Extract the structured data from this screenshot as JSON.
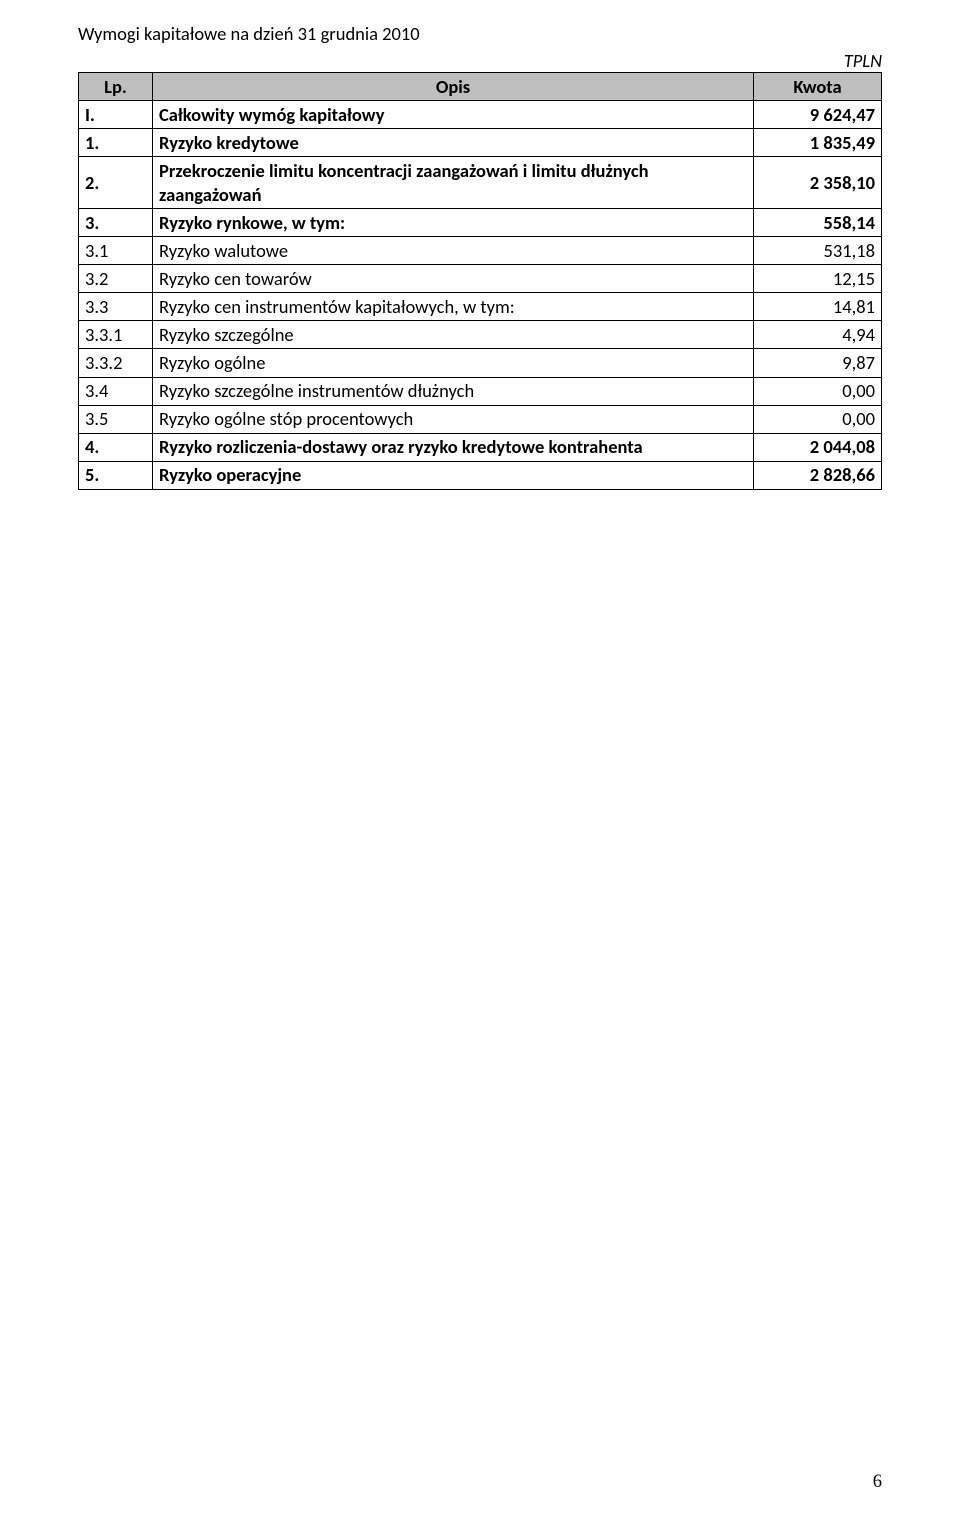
{
  "title": "Wymogi kapitałowe na dzień 31 grudnia 2010",
  "currency_label": "TPLN",
  "table": {
    "headers": {
      "lp": "Lp.",
      "opis": "Opis",
      "kwota": "Kwota"
    },
    "header_bg": "#bfbfbf",
    "border_color": "#000000",
    "rows": [
      {
        "lp": "I.",
        "opis": "Całkowity wymóg kapitałowy",
        "kwota": "9 624,47",
        "bold": true
      },
      {
        "lp": "1.",
        "opis": "Ryzyko kredytowe",
        "kwota": "1 835,49",
        "bold": true
      },
      {
        "lp": "2.",
        "opis": "Przekroczenie limitu koncentracji zaangażowań i limitu dłużnych zaangażowań",
        "kwota": "2 358,10",
        "bold": true
      },
      {
        "lp": "3.",
        "opis": "Ryzyko rynkowe, w tym:",
        "kwota": "558,14",
        "bold": true
      },
      {
        "lp": "3.1",
        "opis": "Ryzyko walutowe",
        "kwota": "531,18",
        "bold": false
      },
      {
        "lp": "3.2",
        "opis": "Ryzyko cen towarów",
        "kwota": "12,15",
        "bold": false
      },
      {
        "lp": "3.3",
        "opis": "Ryzyko cen instrumentów kapitałowych, w tym:",
        "kwota": "14,81",
        "bold": false
      },
      {
        "lp": "3.3.1",
        "opis": "Ryzyko szczególne",
        "kwota": "4,94",
        "bold": false
      },
      {
        "lp": "3.3.2",
        "opis": "Ryzyko ogólne",
        "kwota": "9,87",
        "bold": false
      },
      {
        "lp": "3.4",
        "opis": "Ryzyko szczególne instrumentów dłużnych",
        "kwota": "0,00",
        "bold": false
      },
      {
        "lp": "3.5",
        "opis": "Ryzyko ogólne stóp procentowych",
        "kwota": "0,00",
        "bold": false
      },
      {
        "lp": "4.",
        "opis": "Ryzyko rozliczenia-dostawy oraz ryzyko kredytowe kontrahenta",
        "kwota": "2 044,08",
        "bold": true
      },
      {
        "lp": "5.",
        "opis": "Ryzyko operacyjne",
        "kwota": "2 828,66",
        "bold": true
      }
    ]
  },
  "page_number": "6"
}
